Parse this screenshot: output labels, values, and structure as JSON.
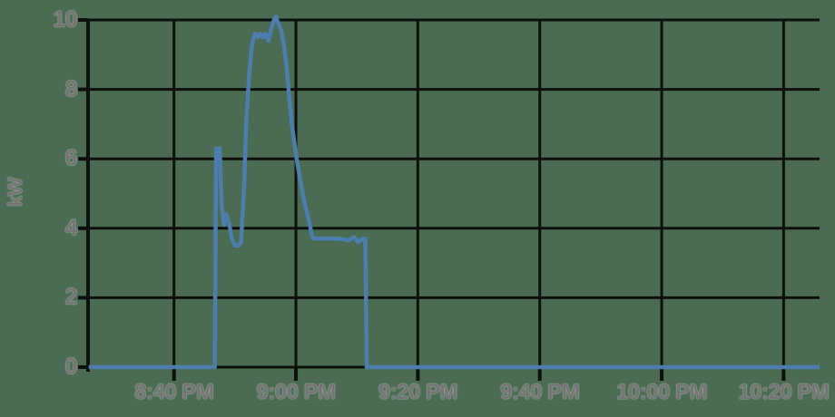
{
  "chart_data": {
    "type": "line",
    "title": "",
    "xlabel": "",
    "ylabel": "kW",
    "ylim": [
      0,
      10
    ],
    "y_ticks": [
      0,
      2,
      4,
      6,
      8,
      10
    ],
    "x_domain_minutes_after_8pm": [
      25.9,
      145.9
    ],
    "x_ticks": [
      {
        "minutes_after_8pm": 40,
        "label": "8:40 PM"
      },
      {
        "minutes_after_8pm": 60,
        "label": "9:00 PM"
      },
      {
        "minutes_after_8pm": 80,
        "label": "9:20 PM"
      },
      {
        "minutes_after_8pm": 100,
        "label": "9:40 PM"
      },
      {
        "minutes_after_8pm": 120,
        "label": "10:00 PM"
      },
      {
        "minutes_after_8pm": 140,
        "label": "10:20 PM"
      }
    ],
    "grid": true,
    "legend": "none",
    "series": [
      {
        "name": "kW",
        "points_minutes_kw": [
          [
            26.0,
            0
          ],
          [
            46.7,
            0
          ],
          [
            46.9,
            6.3
          ],
          [
            47.5,
            6.3
          ],
          [
            47.8,
            4.7
          ],
          [
            48.2,
            4.1
          ],
          [
            48.6,
            4.4
          ],
          [
            49.1,
            4.1
          ],
          [
            49.5,
            3.7
          ],
          [
            50.0,
            3.5
          ],
          [
            50.6,
            3.5
          ],
          [
            51.0,
            3.6
          ],
          [
            51.5,
            5.2
          ],
          [
            51.9,
            7.2
          ],
          [
            52.4,
            8.6
          ],
          [
            52.8,
            9.3
          ],
          [
            53.3,
            9.6
          ],
          [
            53.7,
            9.5
          ],
          [
            54.1,
            9.6
          ],
          [
            54.6,
            9.5
          ],
          [
            55.0,
            9.6
          ],
          [
            55.5,
            9.4
          ],
          [
            55.9,
            9.7
          ],
          [
            56.4,
            10.0
          ],
          [
            56.7,
            10.1
          ],
          [
            57.1,
            9.9
          ],
          [
            57.6,
            9.7
          ],
          [
            58.0,
            9.3
          ],
          [
            58.5,
            8.6
          ],
          [
            58.9,
            7.8
          ],
          [
            59.4,
            6.9
          ],
          [
            59.8,
            6.4
          ],
          [
            60.2,
            5.9
          ],
          [
            60.7,
            5.4
          ],
          [
            61.1,
            5.0
          ],
          [
            61.6,
            4.6
          ],
          [
            62.0,
            4.3
          ],
          [
            62.3,
            4.1
          ],
          [
            62.6,
            3.8
          ],
          [
            62.9,
            3.7
          ],
          [
            65.0,
            3.7
          ],
          [
            67.2,
            3.7
          ],
          [
            68.7,
            3.65
          ],
          [
            69.5,
            3.75
          ],
          [
            70.2,
            3.6
          ],
          [
            71.0,
            3.7
          ],
          [
            71.4,
            3.7
          ],
          [
            71.6,
            0
          ],
          [
            145.9,
            0
          ]
        ]
      }
    ],
    "colors": {
      "background": "#4b6c52",
      "gridline": "#0c110c",
      "line": "#4c7dad",
      "tick_text": "#757575"
    }
  }
}
